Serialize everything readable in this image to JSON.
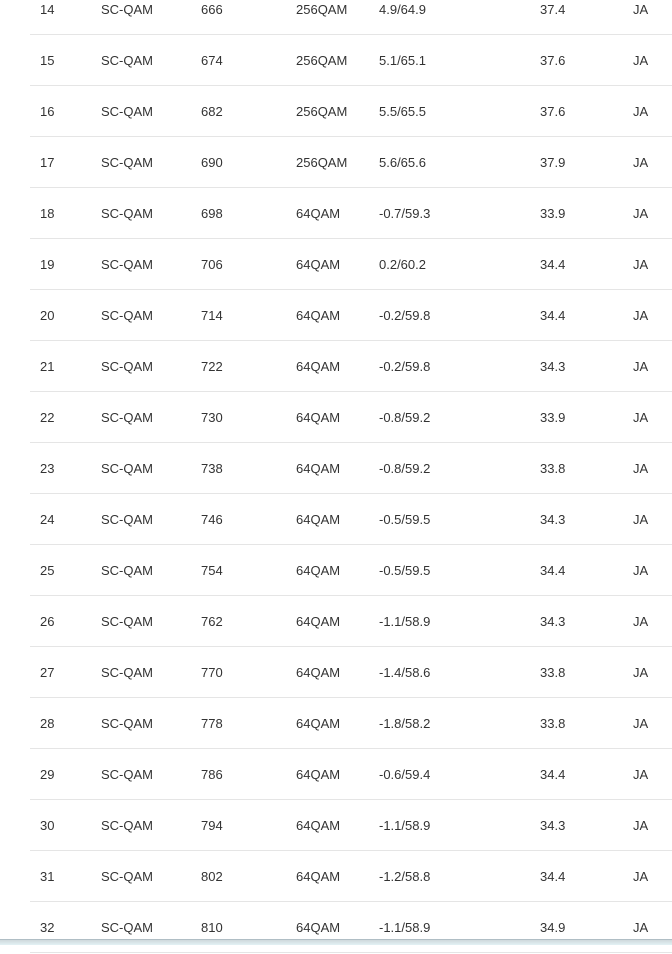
{
  "table": {
    "rows": [
      [
        "14",
        "SC-QAM",
        "666",
        "256QAM",
        "4.9/64.9",
        "37.4",
        "JA"
      ],
      [
        "15",
        "SC-QAM",
        "674",
        "256QAM",
        "5.1/65.1",
        "37.6",
        "JA"
      ],
      [
        "16",
        "SC-QAM",
        "682",
        "256QAM",
        "5.5/65.5",
        "37.6",
        "JA"
      ],
      [
        "17",
        "SC-QAM",
        "690",
        "256QAM",
        "5.6/65.6",
        "37.9",
        "JA"
      ],
      [
        "18",
        "SC-QAM",
        "698",
        "64QAM",
        "-0.7/59.3",
        "33.9",
        "JA"
      ],
      [
        "19",
        "SC-QAM",
        "706",
        "64QAM",
        "0.2/60.2",
        "34.4",
        "JA"
      ],
      [
        "20",
        "SC-QAM",
        "714",
        "64QAM",
        "-0.2/59.8",
        "34.4",
        "JA"
      ],
      [
        "21",
        "SC-QAM",
        "722",
        "64QAM",
        "-0.2/59.8",
        "34.3",
        "JA"
      ],
      [
        "22",
        "SC-QAM",
        "730",
        "64QAM",
        "-0.8/59.2",
        "33.9",
        "JA"
      ],
      [
        "23",
        "SC-QAM",
        "738",
        "64QAM",
        "-0.8/59.2",
        "33.8",
        "JA"
      ],
      [
        "24",
        "SC-QAM",
        "746",
        "64QAM",
        "-0.5/59.5",
        "34.3",
        "JA"
      ],
      [
        "25",
        "SC-QAM",
        "754",
        "64QAM",
        "-0.5/59.5",
        "34.4",
        "JA"
      ],
      [
        "26",
        "SC-QAM",
        "762",
        "64QAM",
        "-1.1/58.9",
        "34.3",
        "JA"
      ],
      [
        "27",
        "SC-QAM",
        "770",
        "64QAM",
        "-1.4/58.6",
        "33.8",
        "JA"
      ],
      [
        "28",
        "SC-QAM",
        "778",
        "64QAM",
        "-1.8/58.2",
        "33.8",
        "JA"
      ],
      [
        "29",
        "SC-QAM",
        "786",
        "64QAM",
        "-0.6/59.4",
        "34.4",
        "JA"
      ],
      [
        "30",
        "SC-QAM",
        "794",
        "64QAM",
        "-1.1/58.9",
        "34.3",
        "JA"
      ],
      [
        "31",
        "SC-QAM",
        "802",
        "64QAM",
        "-1.2/58.8",
        "34.4",
        "JA"
      ],
      [
        "32",
        "SC-QAM",
        "810",
        "64QAM",
        "-1.1/58.9",
        "34.9",
        "JA"
      ]
    ]
  }
}
